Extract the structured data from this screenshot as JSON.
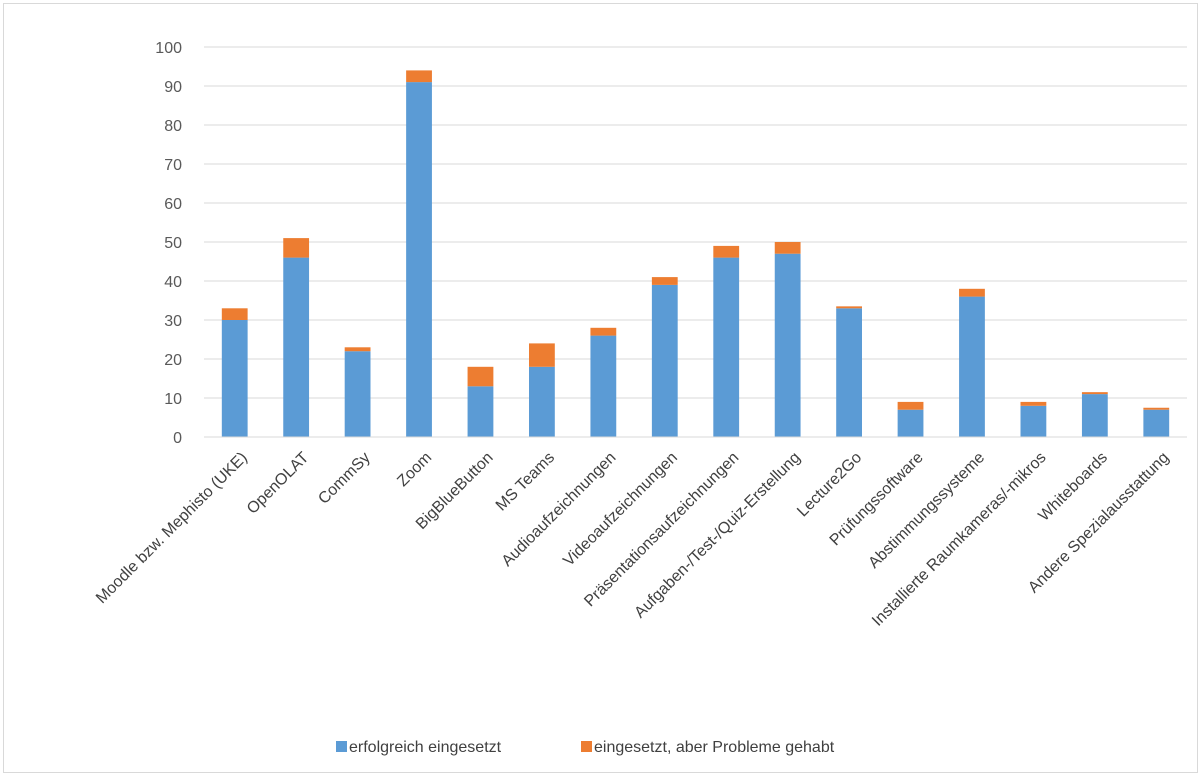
{
  "chart_data": {
    "type": "bar",
    "stacked": true,
    "title": "",
    "xlabel": "",
    "ylabel": "",
    "ylim": [
      0,
      100
    ],
    "yticks": [
      0,
      10,
      20,
      30,
      40,
      50,
      60,
      70,
      80,
      90,
      100
    ],
    "grid": true,
    "legend_position": "bottom",
    "categories": [
      "Moodle bzw. Mephisto (UKE)",
      "OpenOLAT",
      "CommSy",
      "Zoom",
      "BigBlueButton",
      "MS Teams",
      "Audioaufzeichnungen",
      "Videoaufzeichnungen",
      "Präsentationsaufzeichnungen",
      "Aufgaben-/Test-/Quiz-Erstellung",
      "Lecture2Go",
      "Prüfungssoftware",
      "Abstimmungssysteme",
      "Installierte Raumkameras/-mikros",
      "Whiteboards",
      "Andere Spezialausstattung"
    ],
    "series": [
      {
        "name": "erfolgreich eingesetzt",
        "color": "#5b9bd5",
        "values": [
          30,
          46,
          22,
          91,
          13,
          18,
          26,
          39,
          46,
          47,
          33,
          7,
          36,
          8,
          11,
          7
        ]
      },
      {
        "name": "eingesetzt, aber Probleme gehabt",
        "color": "#ed7d31",
        "values": [
          3,
          5,
          1,
          3,
          5,
          6,
          2,
          2,
          3,
          3,
          0.5,
          2,
          2,
          1,
          0.5,
          0.5
        ]
      }
    ]
  }
}
